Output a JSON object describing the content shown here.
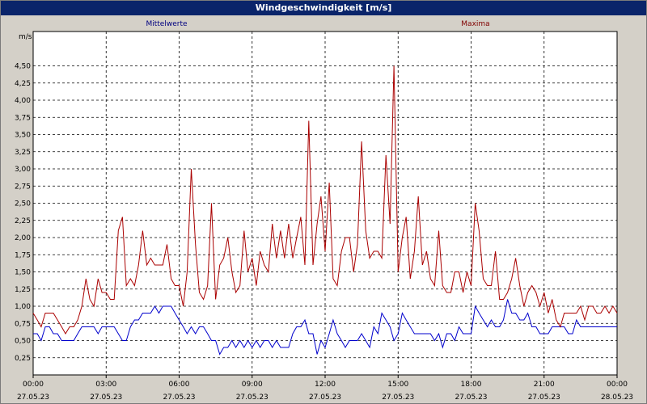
{
  "title": "Windgeschwindigkeit [m/s]",
  "chart_data": {
    "type": "line",
    "title": "Windgeschwindigkeit [m/s]",
    "ylabel": "m/s",
    "xlabel": "",
    "ylim": [
      0,
      5.0
    ],
    "grid": true,
    "legend_placement": "top",
    "y_ticks": [
      "0,25",
      "0,50",
      "0,75",
      "1,00",
      "1,25",
      "1,50",
      "1,75",
      "2,00",
      "2,25",
      "2,50",
      "2,75",
      "3,00",
      "3,25",
      "3,50",
      "3,75",
      "4,00",
      "4,25",
      "4,50"
    ],
    "x_ticks": [
      {
        "time": "00:00",
        "date": "27.05.23"
      },
      {
        "time": "03:00",
        "date": "27.05.23"
      },
      {
        "time": "06:00",
        "date": "27.05.23"
      },
      {
        "time": "09:00",
        "date": "27.05.23"
      },
      {
        "time": "12:00",
        "date": "27.05.23"
      },
      {
        "time": "15:00",
        "date": "27.05.23"
      },
      {
        "time": "18:00",
        "date": "27.05.23"
      },
      {
        "time": "21:00",
        "date": "27.05.23"
      },
      {
        "time": "00:00",
        "date": "28.05.23"
      }
    ],
    "x_range_hours": [
      0,
      24
    ],
    "series": [
      {
        "name": "Mittelwerte",
        "color": "#0000cc",
        "points": [
          [
            0.0,
            0.6
          ],
          [
            0.17,
            0.6
          ],
          [
            0.33,
            0.5
          ],
          [
            0.5,
            0.7
          ],
          [
            0.67,
            0.7
          ],
          [
            0.83,
            0.6
          ],
          [
            1.0,
            0.6
          ],
          [
            1.17,
            0.5
          ],
          [
            1.33,
            0.5
          ],
          [
            1.5,
            0.5
          ],
          [
            1.67,
            0.5
          ],
          [
            1.83,
            0.6
          ],
          [
            2.0,
            0.7
          ],
          [
            2.17,
            0.7
          ],
          [
            2.33,
            0.7
          ],
          [
            2.5,
            0.7
          ],
          [
            2.67,
            0.6
          ],
          [
            2.83,
            0.7
          ],
          [
            3.0,
            0.7
          ],
          [
            3.17,
            0.7
          ],
          [
            3.33,
            0.7
          ],
          [
            3.5,
            0.6
          ],
          [
            3.67,
            0.5
          ],
          [
            3.83,
            0.5
          ],
          [
            4.0,
            0.7
          ],
          [
            4.17,
            0.8
          ],
          [
            4.33,
            0.8
          ],
          [
            4.5,
            0.9
          ],
          [
            4.67,
            0.9
          ],
          [
            4.83,
            0.9
          ],
          [
            5.0,
            1.0
          ],
          [
            5.17,
            0.9
          ],
          [
            5.33,
            1.0
          ],
          [
            5.5,
            1.0
          ],
          [
            5.67,
            1.0
          ],
          [
            5.83,
            0.9
          ],
          [
            6.0,
            0.8
          ],
          [
            6.17,
            0.7
          ],
          [
            6.33,
            0.6
          ],
          [
            6.5,
            0.7
          ],
          [
            6.67,
            0.6
          ],
          [
            6.83,
            0.7
          ],
          [
            7.0,
            0.7
          ],
          [
            7.17,
            0.6
          ],
          [
            7.33,
            0.5
          ],
          [
            7.5,
            0.5
          ],
          [
            7.67,
            0.3
          ],
          [
            7.83,
            0.4
          ],
          [
            8.0,
            0.4
          ],
          [
            8.17,
            0.5
          ],
          [
            8.33,
            0.4
          ],
          [
            8.5,
            0.5
          ],
          [
            8.67,
            0.4
          ],
          [
            8.83,
            0.5
          ],
          [
            9.0,
            0.4
          ],
          [
            9.17,
            0.5
          ],
          [
            9.33,
            0.4
          ],
          [
            9.5,
            0.5
          ],
          [
            9.67,
            0.5
          ],
          [
            9.83,
            0.4
          ],
          [
            10.0,
            0.5
          ],
          [
            10.17,
            0.4
          ],
          [
            10.33,
            0.4
          ],
          [
            10.5,
            0.4
          ],
          [
            10.67,
            0.6
          ],
          [
            10.83,
            0.7
          ],
          [
            11.0,
            0.7
          ],
          [
            11.17,
            0.8
          ],
          [
            11.33,
            0.6
          ],
          [
            11.5,
            0.6
          ],
          [
            11.67,
            0.3
          ],
          [
            11.83,
            0.5
          ],
          [
            12.0,
            0.4
          ],
          [
            12.17,
            0.6
          ],
          [
            12.33,
            0.8
          ],
          [
            12.5,
            0.6
          ],
          [
            12.67,
            0.5
          ],
          [
            12.83,
            0.4
          ],
          [
            13.0,
            0.5
          ],
          [
            13.17,
            0.5
          ],
          [
            13.33,
            0.5
          ],
          [
            13.5,
            0.6
          ],
          [
            13.67,
            0.5
          ],
          [
            13.83,
            0.4
          ],
          [
            14.0,
            0.7
          ],
          [
            14.17,
            0.6
          ],
          [
            14.33,
            0.9
          ],
          [
            14.5,
            0.8
          ],
          [
            14.67,
            0.7
          ],
          [
            14.83,
            0.5
          ],
          [
            15.0,
            0.6
          ],
          [
            15.17,
            0.9
          ],
          [
            15.33,
            0.8
          ],
          [
            15.5,
            0.7
          ],
          [
            15.67,
            0.6
          ],
          [
            15.83,
            0.6
          ],
          [
            16.0,
            0.6
          ],
          [
            16.17,
            0.6
          ],
          [
            16.33,
            0.6
          ],
          [
            16.5,
            0.5
          ],
          [
            16.67,
            0.6
          ],
          [
            16.83,
            0.4
          ],
          [
            17.0,
            0.6
          ],
          [
            17.17,
            0.6
          ],
          [
            17.33,
            0.5
          ],
          [
            17.5,
            0.7
          ],
          [
            17.67,
            0.6
          ],
          [
            17.83,
            0.6
          ],
          [
            18.0,
            0.6
          ],
          [
            18.17,
            1.0
          ],
          [
            18.33,
            0.9
          ],
          [
            18.5,
            0.8
          ],
          [
            18.67,
            0.7
          ],
          [
            18.83,
            0.8
          ],
          [
            19.0,
            0.7
          ],
          [
            19.17,
            0.7
          ],
          [
            19.33,
            0.8
          ],
          [
            19.5,
            1.1
          ],
          [
            19.67,
            0.9
          ],
          [
            19.83,
            0.9
          ],
          [
            20.0,
            0.8
          ],
          [
            20.17,
            0.8
          ],
          [
            20.33,
            0.9
          ],
          [
            20.5,
            0.7
          ],
          [
            20.67,
            0.7
          ],
          [
            20.83,
            0.6
          ],
          [
            21.0,
            0.6
          ],
          [
            21.17,
            0.6
          ],
          [
            21.33,
            0.7
          ],
          [
            21.5,
            0.7
          ],
          [
            21.67,
            0.7
          ],
          [
            21.83,
            0.7
          ],
          [
            22.0,
            0.6
          ],
          [
            22.17,
            0.6
          ],
          [
            22.33,
            0.8
          ],
          [
            22.5,
            0.7
          ],
          [
            22.67,
            0.7
          ],
          [
            22.83,
            0.7
          ],
          [
            23.0,
            0.7
          ],
          [
            23.17,
            0.7
          ],
          [
            23.33,
            0.7
          ],
          [
            23.5,
            0.7
          ],
          [
            23.67,
            0.7
          ],
          [
            24.0,
            0.7
          ]
        ]
      },
      {
        "name": "Maxima",
        "color": "#aa0000",
        "points": [
          [
            0.0,
            0.9
          ],
          [
            0.17,
            0.8
          ],
          [
            0.33,
            0.7
          ],
          [
            0.5,
            0.9
          ],
          [
            0.67,
            0.9
          ],
          [
            0.83,
            0.9
          ],
          [
            1.0,
            0.8
          ],
          [
            1.17,
            0.7
          ],
          [
            1.33,
            0.6
          ],
          [
            1.5,
            0.7
          ],
          [
            1.67,
            0.7
          ],
          [
            1.83,
            0.8
          ],
          [
            2.0,
            1.0
          ],
          [
            2.17,
            1.4
          ],
          [
            2.33,
            1.1
          ],
          [
            2.5,
            1.0
          ],
          [
            2.67,
            1.4
          ],
          [
            2.83,
            1.2
          ],
          [
            3.0,
            1.2
          ],
          [
            3.17,
            1.1
          ],
          [
            3.33,
            1.1
          ],
          [
            3.5,
            2.1
          ],
          [
            3.67,
            2.3
          ],
          [
            3.83,
            1.3
          ],
          [
            4.0,
            1.4
          ],
          [
            4.17,
            1.3
          ],
          [
            4.33,
            1.6
          ],
          [
            4.5,
            2.1
          ],
          [
            4.67,
            1.6
          ],
          [
            4.83,
            1.7
          ],
          [
            5.0,
            1.6
          ],
          [
            5.17,
            1.6
          ],
          [
            5.33,
            1.6
          ],
          [
            5.5,
            1.9
          ],
          [
            5.67,
            1.4
          ],
          [
            5.83,
            1.3
          ],
          [
            6.0,
            1.3
          ],
          [
            6.17,
            1.0
          ],
          [
            6.33,
            1.5
          ],
          [
            6.5,
            3.0
          ],
          [
            6.67,
            1.9
          ],
          [
            6.83,
            1.2
          ],
          [
            7.0,
            1.1
          ],
          [
            7.17,
            1.3
          ],
          [
            7.33,
            2.5
          ],
          [
            7.5,
            1.1
          ],
          [
            7.67,
            1.6
          ],
          [
            7.83,
            1.7
          ],
          [
            8.0,
            2.0
          ],
          [
            8.17,
            1.5
          ],
          [
            8.33,
            1.2
          ],
          [
            8.5,
            1.3
          ],
          [
            8.67,
            2.1
          ],
          [
            8.83,
            1.5
          ],
          [
            9.0,
            1.7
          ],
          [
            9.17,
            1.3
          ],
          [
            9.33,
            1.8
          ],
          [
            9.5,
            1.6
          ],
          [
            9.67,
            1.5
          ],
          [
            9.83,
            2.2
          ],
          [
            10.0,
            1.7
          ],
          [
            10.17,
            2.1
          ],
          [
            10.33,
            1.7
          ],
          [
            10.5,
            2.2
          ],
          [
            10.67,
            1.7
          ],
          [
            10.83,
            2.0
          ],
          [
            11.0,
            2.3
          ],
          [
            11.17,
            1.6
          ],
          [
            11.33,
            3.7
          ],
          [
            11.5,
            1.6
          ],
          [
            11.67,
            2.2
          ],
          [
            11.83,
            2.6
          ],
          [
            12.0,
            1.8
          ],
          [
            12.17,
            2.8
          ],
          [
            12.33,
            1.4
          ],
          [
            12.5,
            1.3
          ],
          [
            12.67,
            1.8
          ],
          [
            12.83,
            2.0
          ],
          [
            13.0,
            2.0
          ],
          [
            13.17,
            1.5
          ],
          [
            13.33,
            1.9
          ],
          [
            13.5,
            3.4
          ],
          [
            13.67,
            2.1
          ],
          [
            13.83,
            1.7
          ],
          [
            14.0,
            1.8
          ],
          [
            14.17,
            1.8
          ],
          [
            14.33,
            1.7
          ],
          [
            14.5,
            3.2
          ],
          [
            14.67,
            2.2
          ],
          [
            14.83,
            4.5
          ],
          [
            15.0,
            1.5
          ],
          [
            15.17,
            2.0
          ],
          [
            15.33,
            2.3
          ],
          [
            15.5,
            1.4
          ],
          [
            15.67,
            1.8
          ],
          [
            15.83,
            2.6
          ],
          [
            16.0,
            1.6
          ],
          [
            16.17,
            1.8
          ],
          [
            16.33,
            1.4
          ],
          [
            16.5,
            1.3
          ],
          [
            16.67,
            2.1
          ],
          [
            16.83,
            1.3
          ],
          [
            17.0,
            1.2
          ],
          [
            17.17,
            1.2
          ],
          [
            17.33,
            1.5
          ],
          [
            17.5,
            1.5
          ],
          [
            17.67,
            1.2
          ],
          [
            17.83,
            1.5
          ],
          [
            18.0,
            1.3
          ],
          [
            18.17,
            2.5
          ],
          [
            18.33,
            2.1
          ],
          [
            18.5,
            1.4
          ],
          [
            18.67,
            1.3
          ],
          [
            18.83,
            1.3
          ],
          [
            19.0,
            1.8
          ],
          [
            19.17,
            1.1
          ],
          [
            19.33,
            1.1
          ],
          [
            19.5,
            1.2
          ],
          [
            19.67,
            1.4
          ],
          [
            19.83,
            1.7
          ],
          [
            20.0,
            1.3
          ],
          [
            20.17,
            1.0
          ],
          [
            20.33,
            1.2
          ],
          [
            20.5,
            1.3
          ],
          [
            20.67,
            1.2
          ],
          [
            20.83,
            1.0
          ],
          [
            21.0,
            1.2
          ],
          [
            21.17,
            0.9
          ],
          [
            21.33,
            1.1
          ],
          [
            21.5,
            0.8
          ],
          [
            21.67,
            0.7
          ],
          [
            21.83,
            0.9
          ],
          [
            22.0,
            0.9
          ],
          [
            22.17,
            0.9
          ],
          [
            22.33,
            0.9
          ],
          [
            22.5,
            1.0
          ],
          [
            22.67,
            0.8
          ],
          [
            22.83,
            1.0
          ],
          [
            23.0,
            1.0
          ],
          [
            23.17,
            0.9
          ],
          [
            23.33,
            0.9
          ],
          [
            23.5,
            1.0
          ],
          [
            23.67,
            0.9
          ],
          [
            23.83,
            1.0
          ],
          [
            24.0,
            0.9
          ]
        ]
      }
    ]
  }
}
